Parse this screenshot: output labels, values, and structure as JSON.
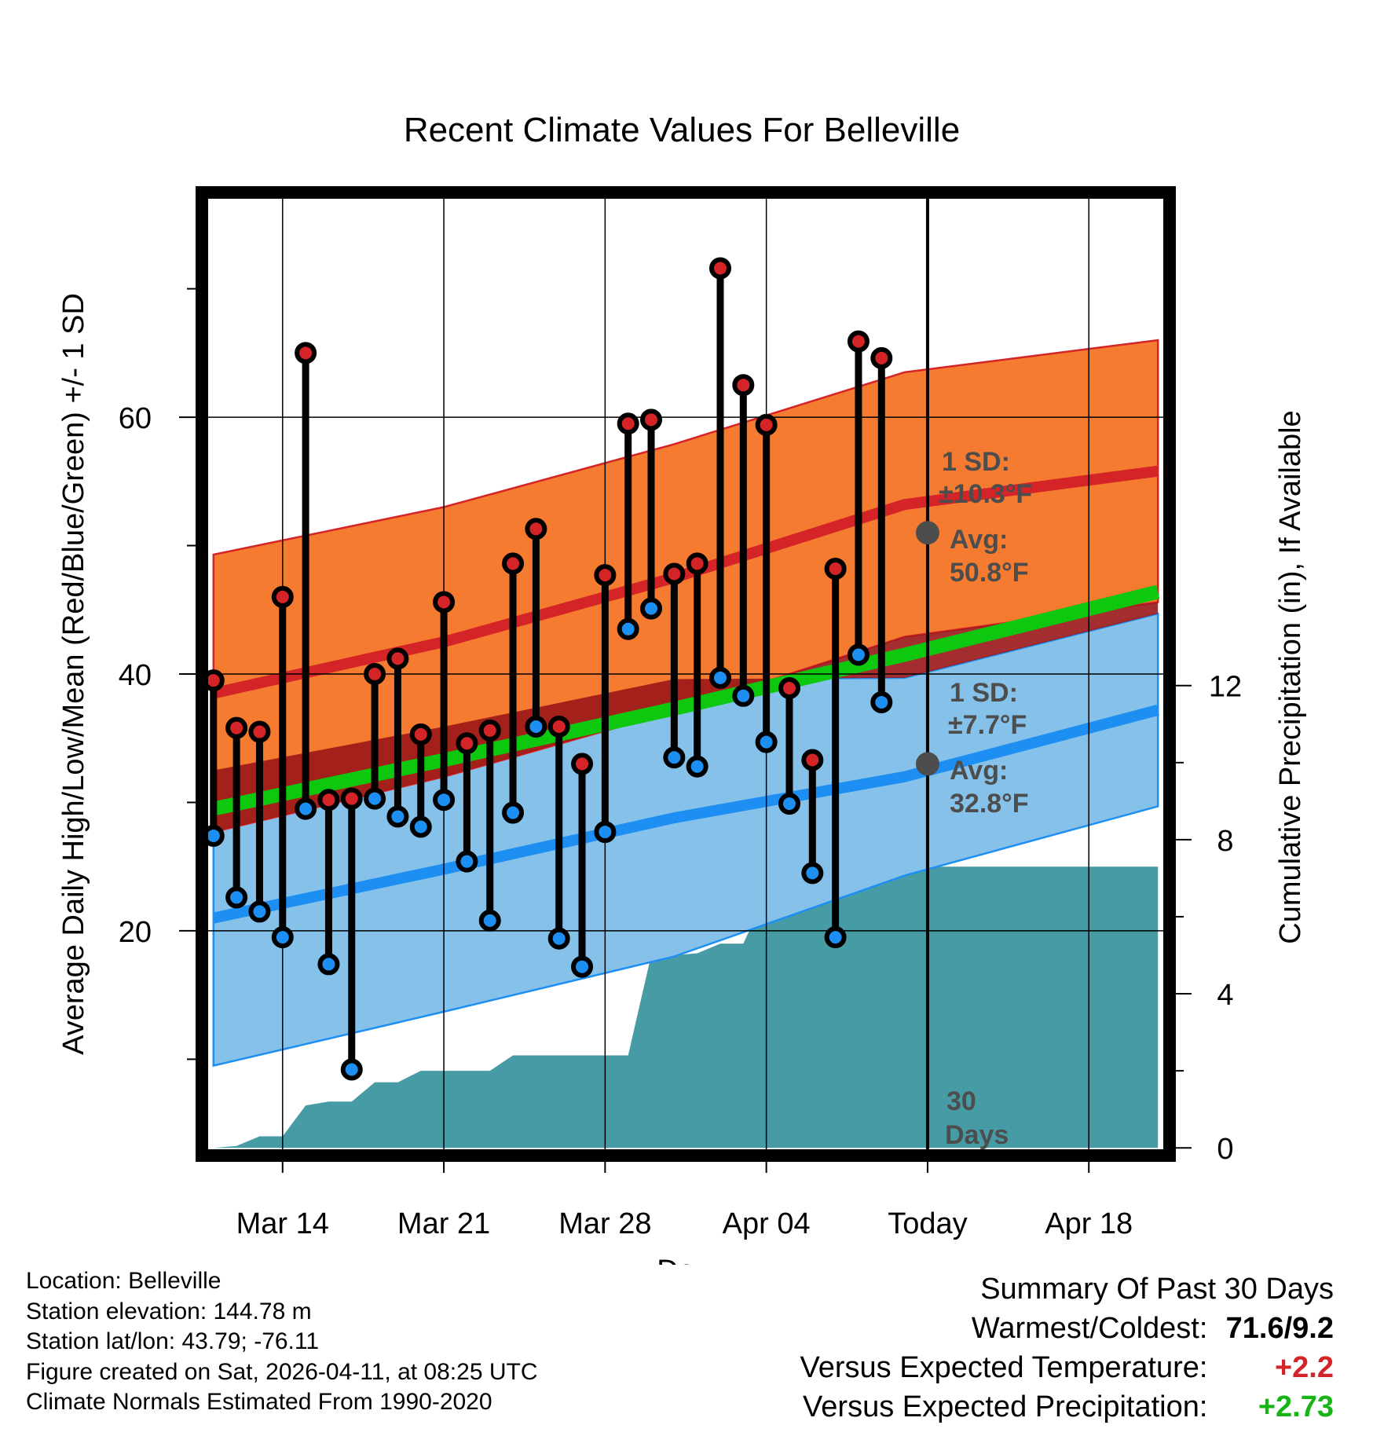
{
  "chart_data": {
    "type": "line",
    "title": "Recent Climate Values For Belleville",
    "xlabel": "Day",
    "ylabel": "Average Daily High/Low/Mean (Red/Blue/Green) +/- 1 SD",
    "y2label": "Cumulative Precipitation (in), If Available",
    "xlim": [
      -0.3,
      41.3
    ],
    "ylim": [
      2.5,
      77.5
    ],
    "y2lim": [
      -0.2,
      24.8
    ],
    "yticks": [
      20,
      40,
      60
    ],
    "y2ticks": [
      0,
      4,
      8,
      12
    ],
    "xticks": [
      {
        "x": 3,
        "label": "Mar 14"
      },
      {
        "x": 10,
        "label": "Mar 21"
      },
      {
        "x": 17,
        "label": "Mar 28"
      },
      {
        "x": 24,
        "label": "Apr 04"
      },
      {
        "x": 31,
        "label": "Today"
      },
      {
        "x": 38,
        "label": "Apr 18"
      }
    ],
    "normals": {
      "x": [
        0,
        10,
        20,
        30,
        41
      ],
      "high_mean": [
        38.5,
        42.5,
        47.5,
        53.2,
        55.8
      ],
      "high_sd": [
        10.8,
        10.5,
        10.4,
        10.3,
        10.2
      ],
      "low_mean": [
        21.0,
        24.8,
        28.8,
        32.0,
        37.2
      ],
      "low_sd": [
        11.5,
        11.1,
        10.8,
        7.7,
        7.5
      ],
      "mean": [
        29.5,
        33.3,
        37.3,
        41.5,
        46.4
      ]
    },
    "daily": {
      "x": [
        0,
        1,
        2,
        3,
        4,
        5,
        6,
        7,
        8,
        9,
        10,
        11,
        12,
        13,
        14,
        15,
        16,
        17,
        18,
        19,
        20,
        21,
        22,
        23,
        24,
        25,
        26,
        27,
        28,
        29,
        30
      ],
      "high": [
        39.5,
        35.8,
        35.5,
        46.0,
        65.0,
        30.2,
        30.3,
        40.0,
        41.2,
        35.3,
        45.6,
        34.6,
        35.6,
        48.6,
        51.3,
        35.9,
        33.0,
        47.7,
        59.5,
        59.8,
        47.8,
        48.6,
        71.6,
        62.5,
        59.4,
        38.9,
        33.3,
        48.2,
        65.9,
        64.6,
        51.0
      ],
      "low": [
        27.4,
        22.6,
        21.5,
        19.5,
        29.5,
        17.4,
        9.2,
        30.3,
        28.9,
        28.1,
        30.2,
        25.4,
        20.8,
        29.2,
        35.9,
        19.4,
        17.2,
        27.7,
        43.5,
        45.1,
        33.5,
        32.8,
        39.7,
        38.3,
        34.7,
        29.9,
        24.5,
        19.5,
        41.5,
        37.8,
        33.0
      ]
    },
    "precip": {
      "x": [
        1,
        2,
        3,
        4,
        5,
        6,
        7,
        8,
        9,
        10,
        11,
        12,
        13,
        14,
        15,
        16,
        17,
        18,
        19,
        20,
        21,
        22,
        23,
        24,
        25,
        26,
        27,
        28,
        29,
        30,
        31,
        41
      ],
      "cumulative": [
        0.05,
        0.3,
        0.3,
        1.1,
        1.2,
        1.2,
        1.7,
        1.7,
        2.0,
        2.0,
        2.0,
        2.0,
        2.4,
        2.4,
        2.4,
        2.4,
        2.4,
        2.4,
        5.0,
        5.0,
        5.05,
        5.3,
        5.3,
        6.6,
        6.6,
        6.9,
        6.9,
        6.9,
        7.3,
        7.3,
        7.3,
        7.3
      ]
    },
    "annotations": {
      "high_sd_label": "1 SD:",
      "high_sd_value": "±10.3°F",
      "high_avg_label": "Avg:",
      "high_avg_value": "50.8°F",
      "low_sd_label": "1 SD:",
      "low_sd_value": "±7.7°F",
      "low_avg_label": "Avg:",
      "low_avg_value": "32.8°F",
      "days_num": "30",
      "days_word": "Days"
    },
    "colors": {
      "high_band": "#f47b2f",
      "high_line": "#d42428",
      "low_band": "#86c1e9",
      "low_line": "#1d8ff3",
      "mean_line": "#0ec810",
      "overlap": "#9a1718",
      "precip": "#479ba5",
      "high_dot": "#d42428",
      "low_dot": "#1d8ff3"
    }
  },
  "footer": {
    "location": "Location: Belleville",
    "elevation": "Station elevation: 144.78 m",
    "latlon": "Station lat/lon: 43.79; -76.11",
    "created": "Figure created on Sat, 2026-04-11, at 08:25 UTC",
    "normals": "Climate Normals Estimated From 1990-2020"
  },
  "summary": {
    "title": "Summary Of Past 30 Days",
    "warmest_label": "Warmest/Coldest:",
    "warmest_value": "71.6/9.2",
    "temp_label": "Versus Expected Temperature:",
    "temp_value": "+2.2",
    "temp_color": "#d42428",
    "precip_label": "Versus Expected Precipitation:",
    "precip_value": "+2.73",
    "precip_color": "#16b414"
  }
}
